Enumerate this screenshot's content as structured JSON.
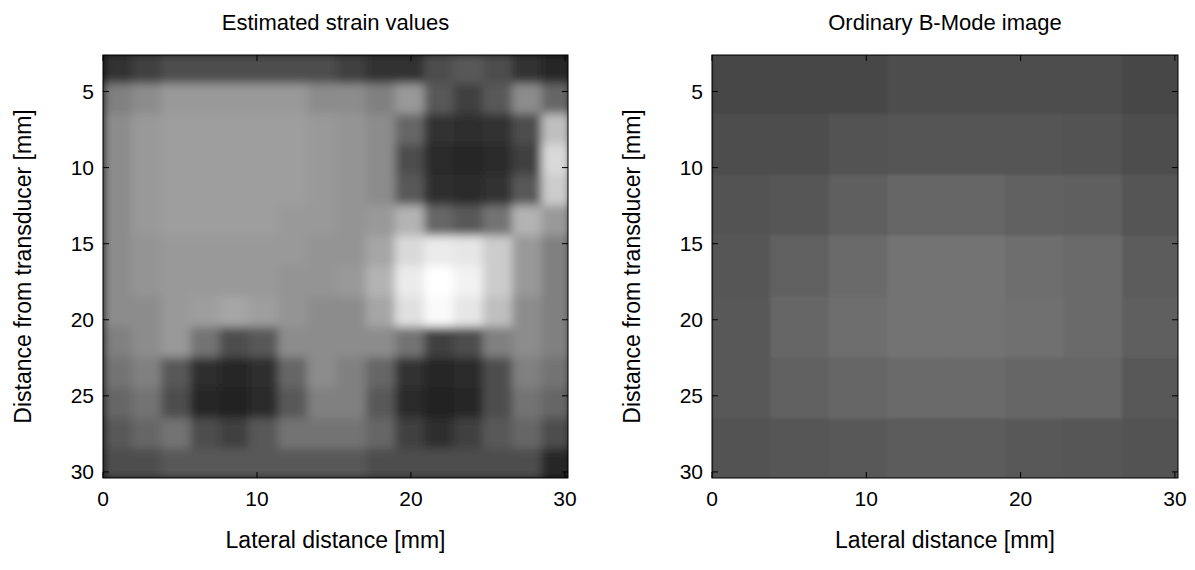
{
  "chart_data": [
    {
      "type": "heatmap",
      "title": "Estimated strain values",
      "x_label": "Lateral distance [mm]",
      "y_label": "Distance from transducer [mm]",
      "xlim": [
        0,
        30.2
      ],
      "ylim": [
        30.4,
        2.6
      ],
      "xticks": [
        0,
        10,
        20,
        30
      ],
      "yticks": [
        5,
        10,
        15,
        20,
        25,
        30
      ],
      "x": [
        0.95,
        2.85,
        4.75,
        6.65,
        8.55,
        10.45,
        12.35,
        14.25,
        16.15,
        18.05,
        19.95,
        21.85,
        23.75,
        25.65,
        27.55,
        29.45
      ],
      "y": [
        3.5,
        5.5,
        7.5,
        9.5,
        11.5,
        13.5,
        15.5,
        17.5,
        19.5,
        21.5,
        23.5,
        25.5,
        27.5,
        29.5
      ],
      "values": [
        [
          0.2,
          0.25,
          0.3,
          0.3,
          0.3,
          0.3,
          0.3,
          0.3,
          0.25,
          0.2,
          0.2,
          0.3,
          0.35,
          0.3,
          0.2,
          0.15
        ],
        [
          0.5,
          0.55,
          0.6,
          0.6,
          0.6,
          0.6,
          0.6,
          0.55,
          0.55,
          0.5,
          0.6,
          0.35,
          0.25,
          0.35,
          0.55,
          0.4
        ],
        [
          0.55,
          0.6,
          0.62,
          0.62,
          0.62,
          0.62,
          0.62,
          0.6,
          0.58,
          0.55,
          0.4,
          0.2,
          0.18,
          0.2,
          0.3,
          0.75
        ],
        [
          0.55,
          0.6,
          0.62,
          0.62,
          0.62,
          0.62,
          0.62,
          0.6,
          0.58,
          0.55,
          0.3,
          0.17,
          0.15,
          0.17,
          0.25,
          0.85
        ],
        [
          0.55,
          0.6,
          0.62,
          0.62,
          0.62,
          0.62,
          0.62,
          0.6,
          0.58,
          0.55,
          0.35,
          0.18,
          0.17,
          0.2,
          0.35,
          0.8
        ],
        [
          0.55,
          0.6,
          0.62,
          0.62,
          0.62,
          0.62,
          0.6,
          0.6,
          0.58,
          0.6,
          0.7,
          0.4,
          0.35,
          0.45,
          0.7,
          0.6
        ],
        [
          0.55,
          0.58,
          0.6,
          0.6,
          0.6,
          0.6,
          0.6,
          0.58,
          0.58,
          0.65,
          0.85,
          0.92,
          0.9,
          0.8,
          0.6,
          0.5
        ],
        [
          0.55,
          0.58,
          0.6,
          0.6,
          0.6,
          0.6,
          0.58,
          0.58,
          0.6,
          0.7,
          0.92,
          1.0,
          0.95,
          0.8,
          0.6,
          0.5
        ],
        [
          0.55,
          0.55,
          0.6,
          0.62,
          0.65,
          0.62,
          0.58,
          0.55,
          0.55,
          0.65,
          0.88,
          0.98,
          0.9,
          0.75,
          0.55,
          0.5
        ],
        [
          0.5,
          0.55,
          0.6,
          0.45,
          0.3,
          0.35,
          0.55,
          0.55,
          0.55,
          0.55,
          0.45,
          0.25,
          0.3,
          0.5,
          0.55,
          0.5
        ],
        [
          0.45,
          0.5,
          0.35,
          0.18,
          0.15,
          0.18,
          0.4,
          0.55,
          0.5,
          0.4,
          0.2,
          0.15,
          0.17,
          0.3,
          0.5,
          0.45
        ],
        [
          0.4,
          0.45,
          0.3,
          0.15,
          0.13,
          0.17,
          0.35,
          0.5,
          0.5,
          0.35,
          0.17,
          0.13,
          0.15,
          0.3,
          0.45,
          0.4
        ],
        [
          0.35,
          0.4,
          0.45,
          0.3,
          0.25,
          0.35,
          0.45,
          0.45,
          0.45,
          0.4,
          0.25,
          0.18,
          0.25,
          0.35,
          0.4,
          0.3
        ],
        [
          0.3,
          0.3,
          0.35,
          0.35,
          0.35,
          0.35,
          0.35,
          0.35,
          0.35,
          0.3,
          0.3,
          0.3,
          0.3,
          0.3,
          0.3,
          0.15
        ]
      ]
    },
    {
      "type": "heatmap",
      "title": "Ordinary B-Mode image",
      "x_label": "Lateral distance [mm]",
      "y_label": "Distance from transducer [mm]",
      "xlim": [
        0,
        30.2
      ],
      "ylim": [
        30.4,
        2.6
      ],
      "xticks": [
        0,
        10,
        20,
        30
      ],
      "yticks": [
        5,
        10,
        15,
        20,
        25,
        30
      ],
      "x": [
        1.9,
        5.7,
        9.5,
        13.3,
        17.1,
        20.9,
        24.7,
        28.5
      ],
      "y": [
        4.5,
        8.5,
        12.5,
        16.5,
        20.5,
        24.5,
        28.5
      ],
      "values": [
        [
          0.28,
          0.28,
          0.28,
          0.3,
          0.3,
          0.3,
          0.3,
          0.28
        ],
        [
          0.3,
          0.3,
          0.32,
          0.33,
          0.33,
          0.33,
          0.32,
          0.3
        ],
        [
          0.32,
          0.34,
          0.37,
          0.4,
          0.4,
          0.38,
          0.37,
          0.33
        ],
        [
          0.34,
          0.38,
          0.42,
          0.45,
          0.45,
          0.43,
          0.42,
          0.36
        ],
        [
          0.35,
          0.4,
          0.43,
          0.45,
          0.45,
          0.44,
          0.42,
          0.37
        ],
        [
          0.35,
          0.38,
          0.4,
          0.42,
          0.42,
          0.4,
          0.4,
          0.35
        ],
        [
          0.32,
          0.34,
          0.35,
          0.36,
          0.36,
          0.35,
          0.34,
          0.32
        ]
      ]
    }
  ]
}
